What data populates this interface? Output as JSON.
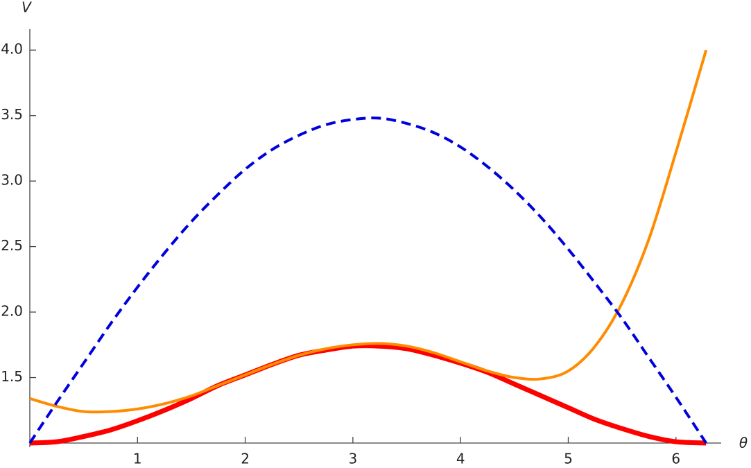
{
  "chart_data": {
    "type": "line",
    "x_label": "θ",
    "y_label": "V",
    "x": [
      0,
      0.25,
      0.5,
      0.75,
      1,
      1.25,
      1.5,
      1.75,
      2,
      2.25,
      2.5,
      2.75,
      3,
      3.25,
      3.5,
      3.75,
      4,
      4.25,
      4.5,
      4.75,
      5,
      5.25,
      5.5,
      5.75,
      6,
      6.28
    ],
    "series": [
      {
        "color": "#ff0000",
        "width": 7,
        "dashed": false,
        "values": [
          1.0,
          1.01,
          1.05,
          1.1,
          1.17,
          1.25,
          1.34,
          1.44,
          1.52,
          1.6,
          1.67,
          1.71,
          1.74,
          1.74,
          1.72,
          1.67,
          1.61,
          1.54,
          1.45,
          1.36,
          1.27,
          1.18,
          1.11,
          1.05,
          1.01,
          1.0
        ]
      },
      {
        "color": "#ff8c00",
        "width": 4,
        "dashed": false,
        "values": [
          1.34,
          1.28,
          1.24,
          1.24,
          1.26,
          1.3,
          1.36,
          1.44,
          1.52,
          1.6,
          1.67,
          1.72,
          1.75,
          1.76,
          1.74,
          1.69,
          1.62,
          1.55,
          1.5,
          1.49,
          1.55,
          1.74,
          2.07,
          2.56,
          3.22,
          4.0
        ]
      },
      {
        "color": "#0000dd",
        "width": 4,
        "dashed": true,
        "values": [
          1.0,
          1.31,
          1.61,
          1.91,
          2.19,
          2.45,
          2.69,
          2.9,
          3.09,
          3.24,
          3.35,
          3.43,
          3.47,
          3.48,
          3.44,
          3.37,
          3.26,
          3.11,
          2.93,
          2.72,
          2.48,
          2.22,
          1.95,
          1.65,
          1.35,
          1.0
        ]
      }
    ],
    "xlim": [
      0,
      6.42
    ],
    "ylim": [
      1,
      4.16
    ],
    "xticks": [
      1,
      2,
      3,
      4,
      5,
      6
    ],
    "yticks": [
      1.5,
      {
        "value": 2,
        "label": "2.0"
      },
      2.5,
      {
        "value": 3,
        "label": "3.0"
      },
      3.5,
      {
        "value": 4,
        "label": "4.0"
      }
    ]
  }
}
